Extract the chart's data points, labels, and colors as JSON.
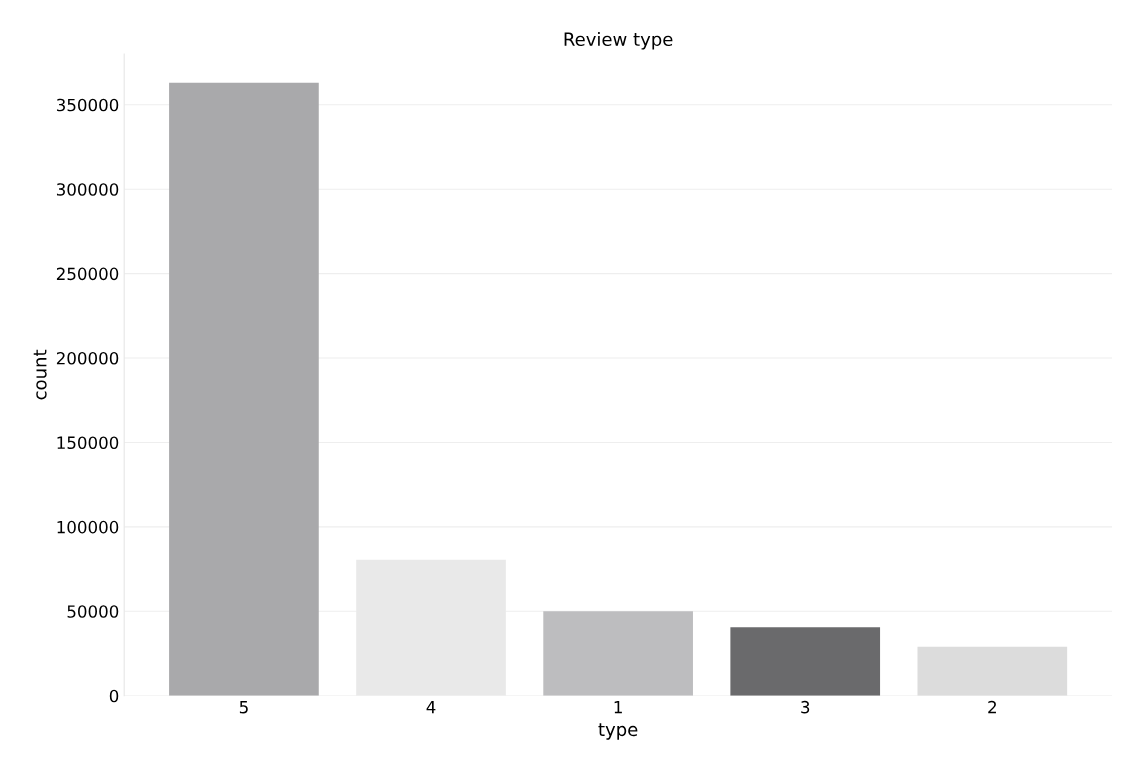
{
  "chart_data": {
    "type": "bar",
    "title": "Review type",
    "xlabel": "type",
    "ylabel": "count",
    "categories": [
      "5",
      "4",
      "1",
      "3",
      "2"
    ],
    "values": [
      363000,
      80500,
      50000,
      40500,
      29000
    ],
    "colors": [
      "#a9a9ab",
      "#e9e9e9",
      "#bdbdbf",
      "#6a6a6c",
      "#dcdcdc"
    ],
    "ylim": [
      0,
      380000
    ],
    "yticks": [
      0,
      50000,
      100000,
      150000,
      200000,
      250000,
      300000,
      350000
    ],
    "grid": "y"
  }
}
